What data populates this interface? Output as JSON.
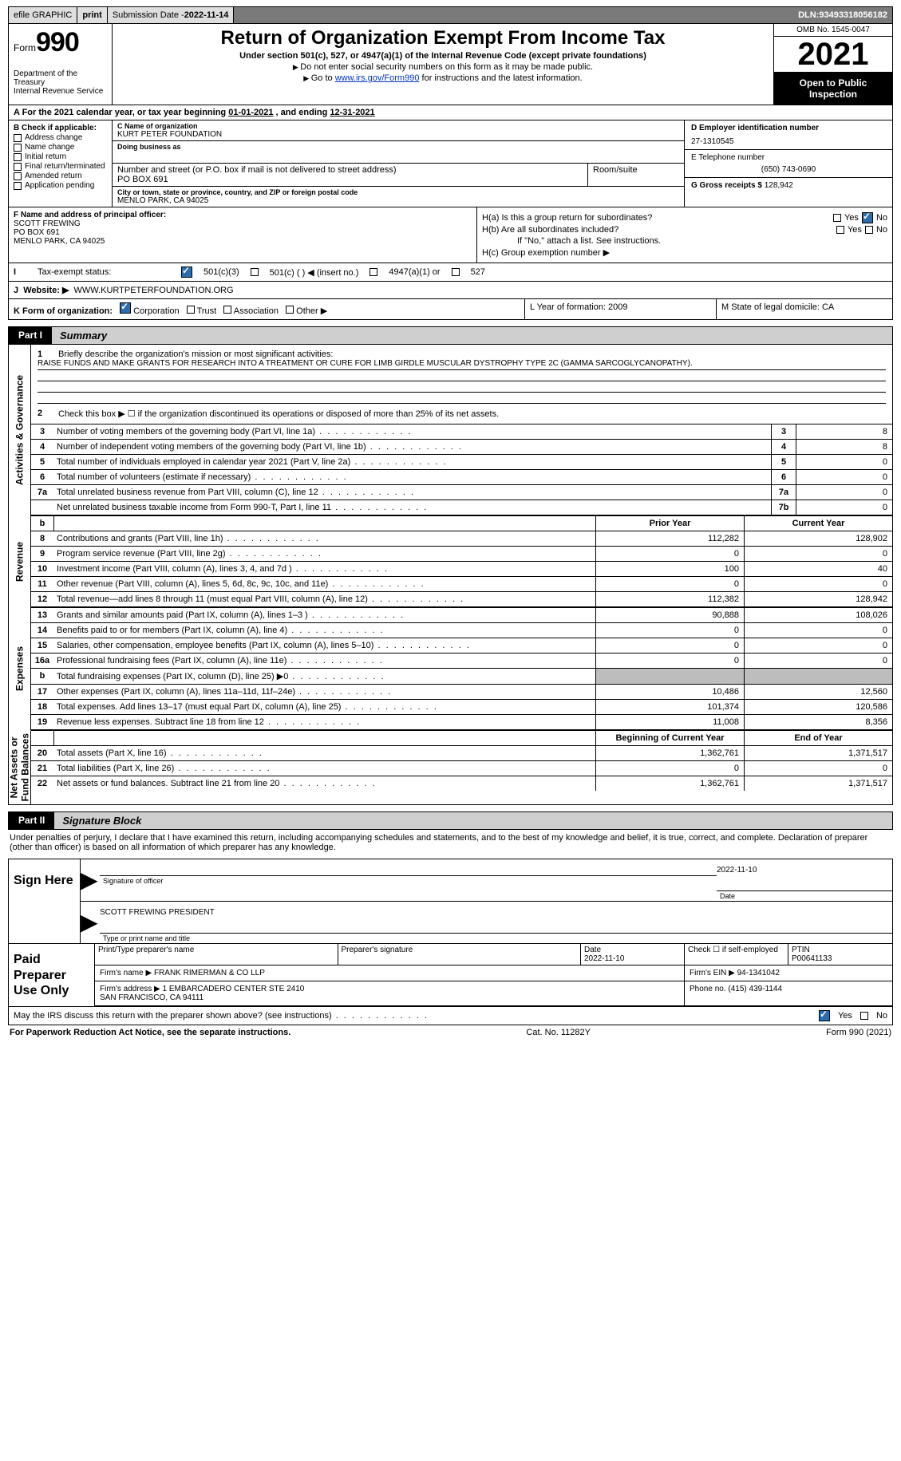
{
  "topbar": {
    "efile": "efile GRAPHIC",
    "print": "print",
    "sub_label": "Submission Date - ",
    "sub_date": "2022-11-14",
    "dln_label": "DLN: ",
    "dln": "93493318056182"
  },
  "header": {
    "form_word": "Form",
    "form_no": "990",
    "dept": "Department of the Treasury",
    "irs": "Internal Revenue Service",
    "title": "Return of Organization Exempt From Income Tax",
    "sub": "Under section 501(c), 527, or 4947(a)(1) of the Internal Revenue Code (except private foundations)",
    "note1": "Do not enter social security numbers on this form as it may be made public.",
    "note2_pre": "Go to ",
    "note2_link": "www.irs.gov/Form990",
    "note2_post": " for instructions and the latest information.",
    "omb": "OMB No. 1545-0047",
    "year": "2021",
    "open": "Open to Public Inspection"
  },
  "A": {
    "cal_line_pre": "A For the 2021 calendar year, or tax year beginning ",
    "begin": "01-01-2021",
    "mid": " , and ending ",
    "end": "12-31-2021"
  },
  "B": {
    "label": "B Check if applicable:",
    "opts": [
      "Address change",
      "Name change",
      "Initial return",
      "Final return/terminated",
      "Amended return",
      "Application pending"
    ]
  },
  "C": {
    "name_lbl": "C Name of organization",
    "name": "KURT PETER FOUNDATION",
    "dba_lbl": "Doing business as",
    "dba": "",
    "street_lbl": "Number and street (or P.O. box if mail is not delivered to street address)",
    "street": "PO BOX 691",
    "room_lbl": "Room/suite",
    "room": "",
    "city_lbl": "City or town, state or province, country, and ZIP or foreign postal code",
    "city": "MENLO PARK, CA  94025"
  },
  "D": {
    "lbl": "D Employer identification number",
    "ein": "27-1310545"
  },
  "E": {
    "lbl": "E Telephone number",
    "phone": "(650) 743-0690"
  },
  "G": {
    "lbl": "G Gross receipts $",
    "amt": "128,942"
  },
  "F": {
    "lbl": "F Name and address of principal officer:",
    "name": "SCOTT FREWING",
    "addr1": "PO BOX 691",
    "addr2": "MENLO PARK, CA  94025"
  },
  "H": {
    "a": "H(a)  Is this a group return for subordinates?",
    "b": "H(b)  Are all subordinates included?",
    "b_note": "If \"No,\" attach a list. See instructions.",
    "c": "H(c)  Group exemption number ▶",
    "yes": "Yes",
    "no": "No"
  },
  "I": {
    "lbl": "I",
    "title": "Tax-exempt status:",
    "o1": "501(c)(3)",
    "o2": "501(c) (  ) ◀ (insert no.)",
    "o3": "4947(a)(1) or",
    "o4": "527"
  },
  "J": {
    "lbl": "J",
    "title": "Website: ▶",
    "url": "WWW.KURTPETERFOUNDATION.ORG"
  },
  "K": {
    "lbl": "K Form of organization:",
    "opts": [
      "Corporation",
      "Trust",
      "Association",
      "Other ▶"
    ],
    "L": "L Year of formation: 2009",
    "M": "M State of legal domicile: CA"
  },
  "parts": {
    "p1": "Part I",
    "p1t": "Summary",
    "p2": "Part II",
    "p2t": "Signature Block"
  },
  "summary": {
    "q1_lbl": "1",
    "q1": "Briefly describe the organization's mission or most significant activities:",
    "q1_ans": "RAISE FUNDS AND MAKE GRANTS FOR RESEARCH INTO A TREATMENT OR CURE FOR LIMB GIRDLE MUSCULAR DYSTROPHY TYPE 2C (GAMMA SARCOGLYCANOPATHY).",
    "q2": "Check this box ▶ ☐ if the organization discontinued its operations or disposed of more than 25% of its net assets.",
    "lines_num": [
      {
        "n": "3",
        "t": "Number of voting members of the governing body (Part VI, line 1a)",
        "bn": "3",
        "v": "8"
      },
      {
        "n": "4",
        "t": "Number of independent voting members of the governing body (Part VI, line 1b)",
        "bn": "4",
        "v": "8"
      },
      {
        "n": "5",
        "t": "Total number of individuals employed in calendar year 2021 (Part V, line 2a)",
        "bn": "5",
        "v": "0"
      },
      {
        "n": "6",
        "t": "Total number of volunteers (estimate if necessary)",
        "bn": "6",
        "v": "0"
      },
      {
        "n": "7a",
        "t": "Total unrelated business revenue from Part VIII, column (C), line 12",
        "bn": "7a",
        "v": "0"
      },
      {
        "n": "",
        "t": "Net unrelated business taxable income from Form 990-T, Part I, line 11",
        "bn": "7b",
        "v": "0"
      }
    ],
    "col_hdr_prior": "Prior Year",
    "col_hdr_curr": "Current Year",
    "rev": [
      {
        "n": "8",
        "t": "Contributions and grants (Part VIII, line 1h)",
        "p": "112,282",
        "c": "128,902"
      },
      {
        "n": "9",
        "t": "Program service revenue (Part VIII, line 2g)",
        "p": "0",
        "c": "0"
      },
      {
        "n": "10",
        "t": "Investment income (Part VIII, column (A), lines 3, 4, and 7d )",
        "p": "100",
        "c": "40"
      },
      {
        "n": "11",
        "t": "Other revenue (Part VIII, column (A), lines 5, 6d, 8c, 9c, 10c, and 11e)",
        "p": "0",
        "c": "0"
      },
      {
        "n": "12",
        "t": "Total revenue—add lines 8 through 11 (must equal Part VIII, column (A), line 12)",
        "p": "112,382",
        "c": "128,942"
      }
    ],
    "exp": [
      {
        "n": "13",
        "t": "Grants and similar amounts paid (Part IX, column (A), lines 1–3 )",
        "p": "90,888",
        "c": "108,026"
      },
      {
        "n": "14",
        "t": "Benefits paid to or for members (Part IX, column (A), line 4)",
        "p": "0",
        "c": "0"
      },
      {
        "n": "15",
        "t": "Salaries, other compensation, employee benefits (Part IX, column (A), lines 5–10)",
        "p": "0",
        "c": "0"
      },
      {
        "n": "16a",
        "t": "Professional fundraising fees (Part IX, column (A), line 11e)",
        "p": "0",
        "c": "0"
      },
      {
        "n": "b",
        "t": "Total fundraising expenses (Part IX, column (D), line 25) ▶0",
        "p": "GREY",
        "c": "GREY"
      },
      {
        "n": "17",
        "t": "Other expenses (Part IX, column (A), lines 11a–11d, 11f–24e)",
        "p": "10,486",
        "c": "12,560"
      },
      {
        "n": "18",
        "t": "Total expenses. Add lines 13–17 (must equal Part IX, column (A), line 25)",
        "p": "101,374",
        "c": "120,586"
      },
      {
        "n": "19",
        "t": "Revenue less expenses. Subtract line 18 from line 12",
        "p": "11,008",
        "c": "8,356"
      }
    ],
    "na_hdr_b": "Beginning of Current Year",
    "na_hdr_e": "End of Year",
    "na": [
      {
        "n": "20",
        "t": "Total assets (Part X, line 16)",
        "p": "1,362,761",
        "c": "1,371,517"
      },
      {
        "n": "21",
        "t": "Total liabilities (Part X, line 26)",
        "p": "0",
        "c": "0"
      },
      {
        "n": "22",
        "t": "Net assets or fund balances. Subtract line 21 from line 20",
        "p": "1,362,761",
        "c": "1,371,517"
      }
    ],
    "vlabels": {
      "ag": "Activities & Governance",
      "rev": "Revenue",
      "exp": "Expenses",
      "na": "Net Assets or\nFund Balances"
    }
  },
  "sig": {
    "penalties": "Under penalties of perjury, I declare that I have examined this return, including accompanying schedules and statements, and to the best of my knowledge and belief, it is true, correct, and complete. Declaration of preparer (other than officer) is based on all information of which preparer has any knowledge.",
    "sign_here": "Sign Here",
    "sig_officer": "Signature of officer",
    "date_lbl": "Date",
    "date": "2022-11-10",
    "name_title": "SCOTT FREWING  PRESIDENT",
    "name_title_lbl": "Type or print name and title",
    "paid": "Paid Preparer Use Only",
    "p_name_lbl": "Print/Type preparer's name",
    "p_name": "",
    "p_sig_lbl": "Preparer's signature",
    "p_date_lbl": "Date",
    "p_date": "2022-11-10",
    "p_self_lbl": "Check ☐ if self-employed",
    "ptin_lbl": "PTIN",
    "ptin": "P00641133",
    "firm_name_lbl": "Firm's name    ▶",
    "firm_name": "FRANK RIMERMAN & CO LLP",
    "firm_ein_lbl": "Firm's EIN ▶",
    "firm_ein": "94-1341042",
    "firm_addr_lbl": "Firm's address ▶",
    "firm_addr": "1 EMBARCADERO CENTER STE 2410\nSAN FRANCISCO, CA  94111",
    "firm_phone_lbl": "Phone no.",
    "firm_phone": "(415) 439-1144",
    "discuss": "May the IRS discuss this return with the preparer shown above? (see instructions)",
    "yes": "Yes",
    "no": "No"
  },
  "footer": {
    "l": "For Paperwork Reduction Act Notice, see the separate instructions.",
    "m": "Cat. No. 11282Y",
    "r": "Form 990 (2021)"
  }
}
